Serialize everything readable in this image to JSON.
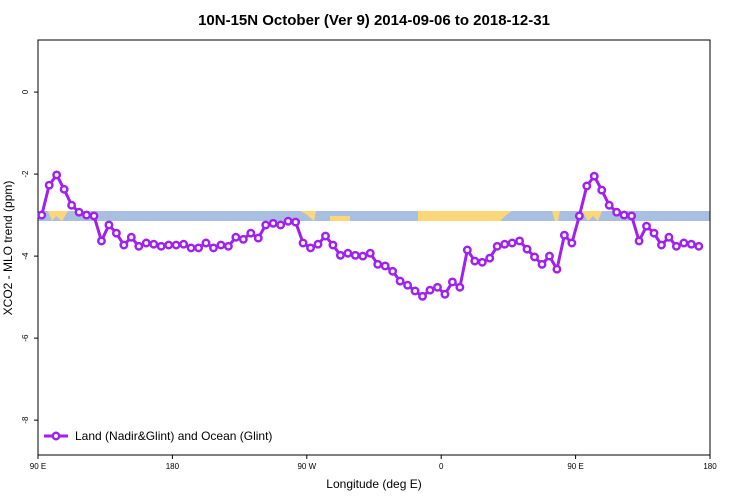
{
  "chart_data": {
    "type": "line",
    "title": "10N-15N October (Ver 9)   2014-09-06 to 2018-12-31",
    "xlabel": "Longitude (deg E)",
    "ylabel": "XCO2 - MLO trend (ppm)",
    "x": [
      92.5,
      97.5,
      102.5,
      107.5,
      112.5,
      117.5,
      122.5,
      127.5,
      132.5,
      137.5,
      142.5,
      147.5,
      152.5,
      157.5,
      162.5,
      167.5,
      172.5,
      177.5,
      182.5,
      187.5,
      192.5,
      197.5,
      202.5,
      207.5,
      212.5,
      217.5,
      222.5,
      227.5,
      232.5,
      237.5,
      242.5,
      247.5,
      252.5,
      257.5,
      262.5,
      267.5,
      272.5,
      277.5,
      282.5,
      287.5,
      292.5,
      297.5,
      302.5,
      307.5,
      312.5,
      317.5,
      322.5,
      327.5,
      332.5,
      337.5,
      342.5,
      347.5,
      352.5,
      357.5,
      362.5,
      367.5,
      372.5,
      377.5,
      382.5,
      387.5,
      392.5,
      397.5,
      402.5,
      407.5,
      412.5,
      417.5,
      422.5,
      427.5,
      432.5,
      437.5,
      442.5,
      447.5,
      452.5,
      457.5,
      462.5,
      467.5,
      472.5,
      477.5,
      482.5,
      487.5,
      492.5,
      497.5,
      502.5,
      507.5,
      512.5,
      517.5,
      522.5,
      527.5,
      532.5
    ],
    "series": [
      {
        "name": "Land (Nadir&Glint) and Ocean (Glint)",
        "color": "#a020f0",
        "values": [
          -3.0,
          -2.27,
          -2.02,
          -2.37,
          -2.76,
          -2.93,
          -3.0,
          -3.02,
          -3.63,
          -3.24,
          -3.44,
          -3.73,
          -3.54,
          -3.76,
          -3.68,
          -3.71,
          -3.76,
          -3.73,
          -3.73,
          -3.71,
          -3.8,
          -3.8,
          -3.68,
          -3.8,
          -3.73,
          -3.76,
          -3.54,
          -3.59,
          -3.44,
          -3.56,
          -3.24,
          -3.2,
          -3.24,
          -3.15,
          -3.17,
          -3.68,
          -3.8,
          -3.71,
          -3.51,
          -3.73,
          -3.98,
          -3.93,
          -3.98,
          -4.0,
          -3.93,
          -4.2,
          -4.24,
          -4.37,
          -4.61,
          -4.71,
          -4.85,
          -4.98,
          -4.83,
          -4.76,
          -4.93,
          -4.63,
          -4.76,
          -3.85,
          -4.12,
          -4.15,
          -4.05,
          -3.76,
          -3.71,
          -3.68,
          -3.63,
          -3.83,
          -4.02,
          -4.2,
          -4.0,
          -4.32,
          -3.49,
          -3.68,
          -3.02,
          -2.29,
          -2.05,
          -2.39,
          -2.76,
          -2.93,
          -3.0,
          -3.02,
          -3.63,
          -3.27,
          -3.44,
          -3.73,
          -3.54,
          -3.76,
          -3.68,
          -3.71,
          -3.76
        ]
      }
    ],
    "xlim": [
      90,
      540
    ],
    "xticks": [
      {
        "value": 90,
        "label": "90 E"
      },
      180,
      {
        "value": 270,
        "label": "90 W"
      },
      {
        "value": 360,
        "label": "0"
      },
      {
        "value": 450,
        "label": "90 E"
      },
      {
        "value": 540,
        "label": "180"
      }
    ],
    "ylim": [
      -8.85,
      1.27
    ],
    "yticks": [
      0,
      -2,
      -4,
      -6,
      -8
    ],
    "legend": "bottom-left"
  }
}
